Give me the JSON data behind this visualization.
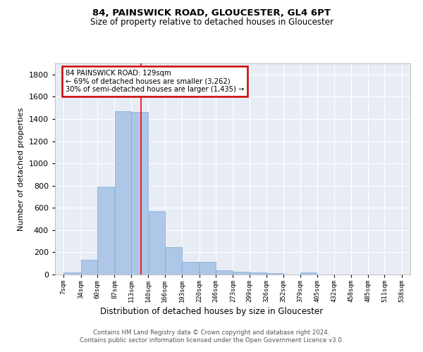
{
  "title1": "84, PAINSWICK ROAD, GLOUCESTER, GL4 6PT",
  "title2": "Size of property relative to detached houses in Gloucester",
  "xlabel": "Distribution of detached houses by size in Gloucester",
  "ylabel": "Number of detached properties",
  "bins": [
    7,
    34,
    60,
    87,
    113,
    140,
    166,
    193,
    220,
    246,
    273,
    299,
    326,
    352,
    379,
    405,
    432,
    458,
    485,
    511,
    538
  ],
  "counts": [
    20,
    135,
    790,
    1470,
    1460,
    570,
    250,
    115,
    115,
    35,
    25,
    20,
    15,
    0,
    20,
    0,
    0,
    0,
    0,
    0
  ],
  "bar_color": "#aec6e8",
  "bar_edge_color": "#7aafd4",
  "red_line_x": 129,
  "annotation_lines": [
    "84 PAINSWICK ROAD: 129sqm",
    "← 69% of detached houses are smaller (3,262)",
    "30% of semi-detached houses are larger (1,435) →"
  ],
  "annotation_box_color": "#ffffff",
  "annotation_box_edge": "#cc0000",
  "footer_text": "Contains HM Land Registry data © Crown copyright and database right 2024.\nContains public sector information licensed under the Open Government Licence v3.0.",
  "background_color": "#e8edf5",
  "ylim": [
    0,
    1900
  ],
  "tick_labels": [
    "7sqm",
    "34sqm",
    "60sqm",
    "87sqm",
    "113sqm",
    "140sqm",
    "166sqm",
    "193sqm",
    "220sqm",
    "246sqm",
    "273sqm",
    "299sqm",
    "326sqm",
    "352sqm",
    "379sqm",
    "405sqm",
    "432sqm",
    "458sqm",
    "485sqm",
    "511sqm",
    "538sqm"
  ]
}
